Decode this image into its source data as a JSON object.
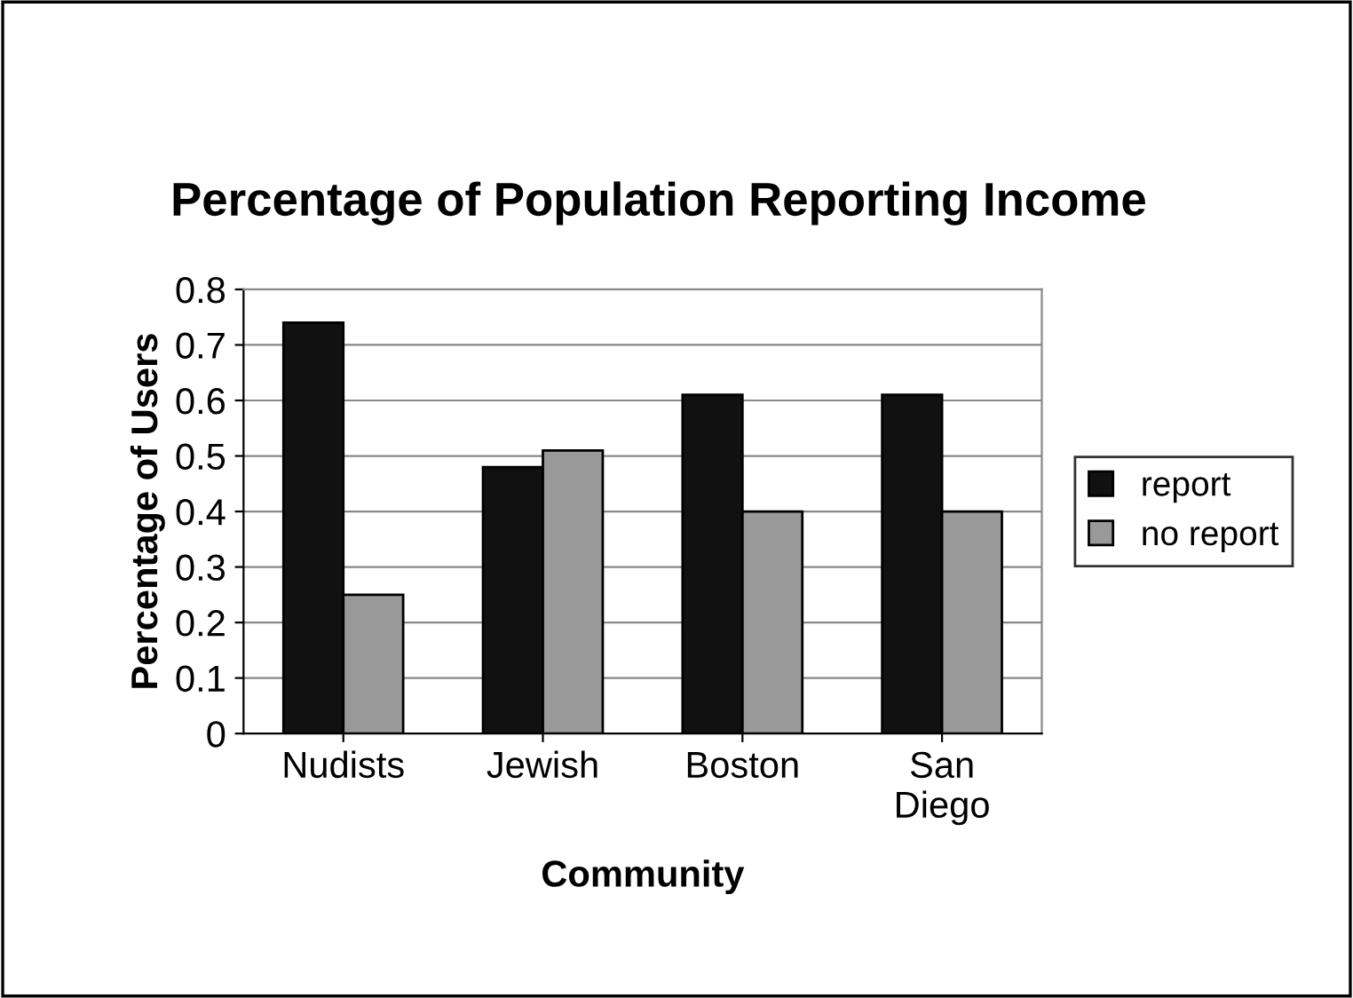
{
  "chart_data": {
    "type": "bar",
    "title": "Percentage of Population Reporting Income",
    "xlabel": "Community",
    "ylabel": "Percentage of Users",
    "categories": [
      "Nudists",
      "Jewish",
      "Boston",
      "San\nDiego"
    ],
    "series": [
      {
        "name": "report",
        "color": "#111111",
        "values": [
          0.74,
          0.48,
          0.61,
          0.61
        ]
      },
      {
        "name": "no report",
        "color": "#999999",
        "values": [
          0.25,
          0.51,
          0.4,
          0.4
        ]
      }
    ],
    "ylim": [
      0,
      0.8
    ],
    "yticks": [
      0,
      0.1,
      0.2,
      0.3,
      0.4,
      0.5,
      0.6,
      0.7,
      0.8
    ],
    "grid": "y",
    "legend": "right"
  }
}
